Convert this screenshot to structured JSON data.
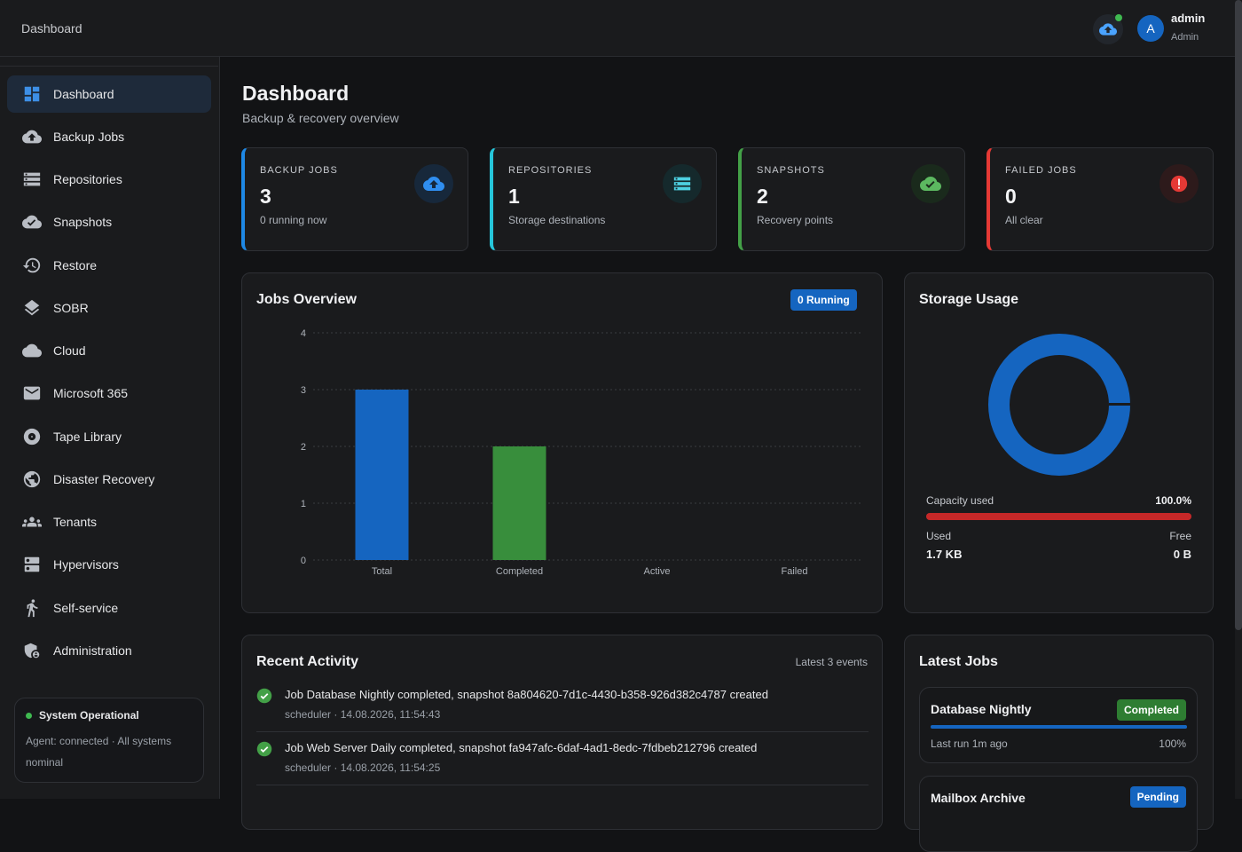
{
  "topbar": {
    "breadcrumb": "Dashboard",
    "user_name": "admin",
    "user_role": "Admin",
    "avatar_letter": "A"
  },
  "sidebar": {
    "items": [
      {
        "label": "Dashboard",
        "icon": "dashboard-icon",
        "active": true
      },
      {
        "label": "Backup Jobs",
        "icon": "cloud-upload-icon"
      },
      {
        "label": "Repositories",
        "icon": "storage-icon"
      },
      {
        "label": "Snapshots",
        "icon": "cloud-done-icon"
      },
      {
        "label": "Restore",
        "icon": "history-icon"
      },
      {
        "label": "SOBR",
        "icon": "layers-icon"
      },
      {
        "label": "Cloud",
        "icon": "cloud-icon"
      },
      {
        "label": "Microsoft 365",
        "icon": "mail-icon"
      },
      {
        "label": "Tape Library",
        "icon": "disc-icon"
      },
      {
        "label": "Disaster Recovery",
        "icon": "globe-icon"
      },
      {
        "label": "Tenants",
        "icon": "groups-icon"
      },
      {
        "label": "Hypervisors",
        "icon": "dns-icon"
      },
      {
        "label": "Self-service",
        "icon": "person-icon"
      },
      {
        "label": "Administration",
        "icon": "admin-shield-icon"
      }
    ],
    "status": {
      "title": "System Operational",
      "desc": "Agent: connected · All systems nominal"
    }
  },
  "page": {
    "title": "Dashboard",
    "subtitle": "Backup & recovery overview"
  },
  "stats": [
    {
      "label": "BACKUP JOBS",
      "value": "3",
      "sub": "0 running now",
      "color": "#1e88e5",
      "icon": "cloud-upload-icon"
    },
    {
      "label": "REPOSITORIES",
      "value": "1",
      "sub": "Storage destinations",
      "color": "#26c6da",
      "icon": "storage-icon"
    },
    {
      "label": "SNAPSHOTS",
      "value": "2",
      "sub": "Recovery points",
      "color": "#43a047",
      "icon": "cloud-done-icon"
    },
    {
      "label": "FAILED JOBS",
      "value": "0",
      "sub": "All clear",
      "color": "#e53935",
      "icon": "error-icon"
    }
  ],
  "jobs_overview": {
    "title": "Jobs Overview",
    "badge": "0 Running"
  },
  "chart_data": {
    "type": "bar",
    "categories": [
      "Total",
      "Completed",
      "Active",
      "Failed"
    ],
    "values": [
      3,
      2,
      0,
      0
    ],
    "colors": [
      "#1565c0",
      "#388e3c",
      "#f9a825",
      "#c62828"
    ],
    "ylim": [
      0,
      4
    ],
    "yticks": [
      0,
      1,
      2,
      3,
      4
    ],
    "grid": true
  },
  "storage": {
    "title": "Storage Usage",
    "capacity_label": "Capacity used",
    "capacity_value": "100.0%",
    "capacity_fraction": 1.0,
    "used_label": "Used",
    "used_value": "1.7 KB",
    "free_label": "Free",
    "free_value": "0 B"
  },
  "activity": {
    "title": "Recent Activity",
    "meta": "Latest 3 events",
    "items": [
      {
        "text": "Job Database Nightly completed, snapshot 8a804620-7d1c-4430-b358-926d382c4787 created",
        "sub": "scheduler · 14.08.2026, 11:54:43"
      },
      {
        "text": "Job Web Server Daily completed, snapshot fa947afc-6daf-4ad1-8edc-7fdbeb212796 created",
        "sub": "scheduler · 14.08.2026, 11:54:25"
      }
    ]
  },
  "latest_jobs": {
    "title": "Latest Jobs",
    "items": [
      {
        "name": "Database Nightly",
        "status": "Completed",
        "last_run": "Last run 1m ago",
        "percent": "100%",
        "progress": 1.0
      },
      {
        "name": "Mailbox Archive",
        "status": "Pending"
      }
    ]
  }
}
